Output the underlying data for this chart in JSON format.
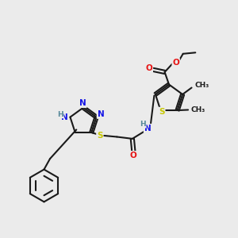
{
  "background_color": "#ebebeb",
  "bond_color": "#1a1a1a",
  "atom_colors": {
    "N": "#1414e6",
    "S": "#c8c800",
    "O": "#e61414",
    "H": "#558899",
    "C": "#1a1a1a"
  },
  "figsize": [
    3.0,
    3.0
  ],
  "dpi": 100,
  "lw": 1.5,
  "fs": 7.5,
  "fs_small": 6.5,
  "xlim": [
    0,
    10
  ],
  "ylim": [
    0,
    10
  ]
}
